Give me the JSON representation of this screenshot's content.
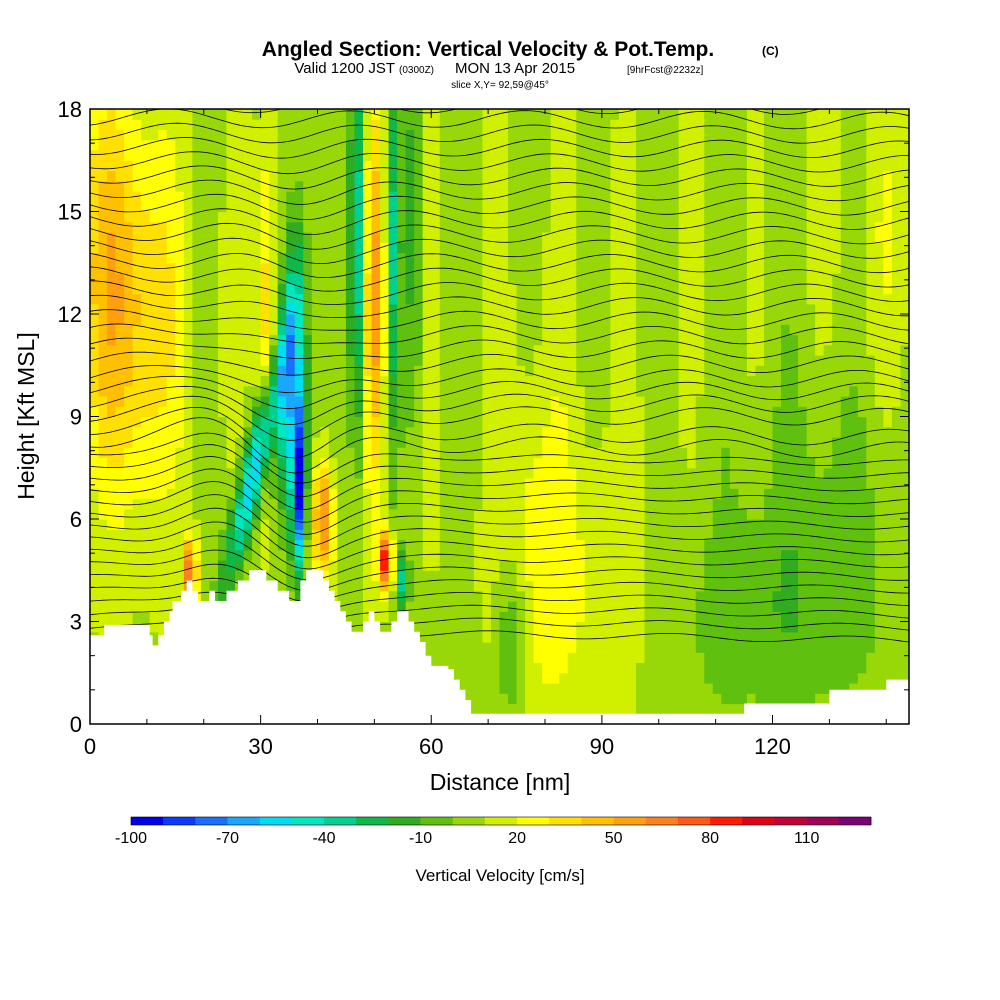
{
  "title": {
    "main": "Angled Section: Vertical Velocity & Pot.Temp.",
    "main_suffix": "(C)",
    "valid_prefix": "Valid 1200 JST",
    "valid_zulu": "(0300Z)",
    "valid_date": "MON 13 Apr 2015",
    "valid_fcst": "[9hrFcst@2232z]",
    "slice": "slice X,Y= 92,59@45°"
  },
  "chart_data": {
    "type": "heatmap",
    "xlabel": "Distance [nm]",
    "ylabel": "Height [Kft MSL]",
    "xlim": [
      0,
      144
    ],
    "ylim": [
      0,
      18
    ],
    "x_ticks": [
      0,
      30,
      60,
      90,
      120
    ],
    "x_tick_labels": [
      "0",
      "30",
      "60",
      "90",
      "120"
    ],
    "y_ticks": [
      0,
      3,
      6,
      9,
      12,
      15,
      18
    ],
    "y_tick_labels": [
      "0",
      "3",
      "6",
      "9",
      "12",
      "15",
      "18"
    ],
    "colorbar": {
      "label": "Vertical Velocity [cm/s]",
      "min": -100,
      "max": 125,
      "step": 10,
      "tick_values": [
        -100,
        -70,
        -40,
        -10,
        20,
        50,
        80,
        110
      ],
      "tick_labels": [
        "-100",
        "-70",
        "-40",
        "-10",
        "20",
        "50",
        "80",
        "110"
      ],
      "colors": [
        "#0000ee",
        "#0a3bff",
        "#1a6fff",
        "#1aa7ff",
        "#00dcf0",
        "#00e8c0",
        "#00d090",
        "#10b84a",
        "#30ac20",
        "#60c010",
        "#98d808",
        "#d0f000",
        "#ffff00",
        "#ffe000",
        "#ffc000",
        "#ffa010",
        "#ff8020",
        "#ff5818",
        "#ff1c00",
        "#e00018",
        "#c0003a",
        "#a0005a",
        "#7c0078"
      ]
    },
    "terrain_profile": {
      "x": [
        0,
        2,
        2.5,
        10,
        10.5,
        11,
        12,
        13,
        14,
        14.5,
        16,
        17,
        18,
        19,
        20,
        21,
        22,
        24,
        26,
        27,
        28,
        29,
        30,
        31,
        32,
        33,
        34,
        35,
        36,
        37,
        38,
        39,
        40,
        41,
        42,
        43,
        44,
        45,
        46,
        47,
        48,
        49,
        50,
        51,
        52,
        53,
        54,
        55,
        56,
        57,
        58,
        59,
        60,
        61,
        62,
        63,
        64,
        65,
        66,
        67,
        68,
        70,
        75,
        80,
        90,
        100,
        110,
        113,
        115,
        118,
        120,
        125,
        128,
        130,
        134,
        138,
        140,
        144
      ],
      "y": [
        2.6,
        2.6,
        2.9,
        2.9,
        2.6,
        2.3,
        2.6,
        3.0,
        3.3,
        3.6,
        3.9,
        4.2,
        3.9,
        3.6,
        3.6,
        3.9,
        3.6,
        3.9,
        4.2,
        4.2,
        4.5,
        4.5,
        4.5,
        4.2,
        4.2,
        3.9,
        3.9,
        3.6,
        3.6,
        4.2,
        4.5,
        4.5,
        4.5,
        4.2,
        3.9,
        3.6,
        3.3,
        3.0,
        2.7,
        2.7,
        3.0,
        3.3,
        3.0,
        2.7,
        2.7,
        3.0,
        3.3,
        3.3,
        3.0,
        2.7,
        2.4,
        2.0,
        1.7,
        1.7,
        1.7,
        1.6,
        1.3,
        1.0,
        0.7,
        0.3,
        0.3,
        0.3,
        0.3,
        0.3,
        0.3,
        0.3,
        0.3,
        0.3,
        0.6,
        0.6,
        0.6,
        0.6,
        0.6,
        1.0,
        1.0,
        1.0,
        1.3,
        1.3
      ]
    }
  }
}
